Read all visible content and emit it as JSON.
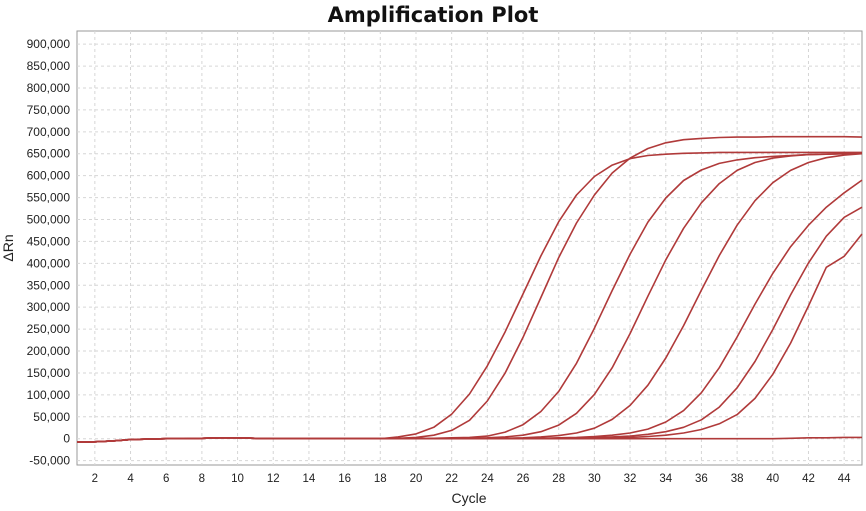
{
  "chart_data": {
    "type": "line",
    "title": "Amplification Plot",
    "xlabel": "Cycle",
    "ylabel": "ΔRn",
    "xlim": [
      1,
      45
    ],
    "ylim": [
      -60000,
      930000
    ],
    "x_ticks": [
      2,
      4,
      6,
      8,
      10,
      12,
      14,
      16,
      18,
      20,
      22,
      24,
      26,
      28,
      30,
      32,
      34,
      36,
      38,
      40,
      42,
      44
    ],
    "y_ticks": [
      -50000,
      0,
      50000,
      100000,
      150000,
      200000,
      250000,
      300000,
      350000,
      400000,
      450000,
      500000,
      550000,
      600000,
      650000,
      700000,
      750000,
      800000,
      850000,
      900000
    ],
    "y_tick_labels": [
      "-50,000",
      "0",
      "50,000",
      "100,000",
      "150,000",
      "200,000",
      "250,000",
      "300,000",
      "350,000",
      "400,000",
      "450,000",
      "500,000",
      "550,000",
      "600,000",
      "650,000",
      "700,000",
      "750,000",
      "800,000",
      "850,000",
      "900,000"
    ],
    "grid": true,
    "line_color": "#b03a3a",
    "x": [
      1,
      2,
      3,
      4,
      5,
      6,
      7,
      8,
      9,
      10,
      11,
      12,
      13,
      14,
      15,
      16,
      17,
      18,
      19,
      20,
      21,
      22,
      23,
      24,
      25,
      26,
      27,
      28,
      29,
      30,
      31,
      32,
      33,
      34,
      35,
      36,
      37,
      38,
      39,
      40,
      41,
      42,
      43,
      44,
      45
    ],
    "series": [
      {
        "values": [
          -8000,
          -7000,
          -5000,
          -2000,
          -1000,
          0,
          0,
          1000,
          2000,
          2000,
          1000,
          0,
          0,
          0,
          0,
          0,
          0,
          0,
          4000,
          11000,
          26000,
          56000,
          102000,
          166000,
          244000,
          330000,
          417000,
          495000,
          556000,
          598000,
          624000,
          639000,
          646000,
          649000,
          651000,
          652000,
          653000,
          653000,
          653000,
          653000,
          653000,
          653000,
          653000,
          653000,
          653000
        ]
      },
      {
        "values": [
          -8000,
          -7000,
          -5000,
          -2000,
          -1000,
          0,
          0,
          1000,
          2000,
          2000,
          1000,
          0,
          0,
          0,
          0,
          0,
          0,
          0,
          1000,
          3000,
          8000,
          19000,
          42000,
          86000,
          150000,
          231000,
          322000,
          413000,
          492000,
          556000,
          606000,
          640000,
          662000,
          675000,
          682000,
          685000,
          687000,
          688000,
          688000,
          689000,
          689000,
          689000,
          689000,
          689000,
          688000
        ]
      },
      {
        "values": [
          -8000,
          -7000,
          -5000,
          -2000,
          -1000,
          0,
          0,
          1000,
          2000,
          2000,
          1000,
          0,
          0,
          0,
          0,
          0,
          0,
          0,
          0,
          0,
          1000,
          2000,
          3000,
          6000,
          15000,
          32000,
          62000,
          108000,
          172000,
          252000,
          338000,
          421000,
          494000,
          549000,
          589000,
          613000,
          628000,
          636000,
          641000,
          644000,
          646000,
          648000,
          649000,
          650000,
          651000
        ]
      },
      {
        "values": [
          -8000,
          -7000,
          -5000,
          -2000,
          -1000,
          0,
          0,
          1000,
          2000,
          2000,
          1000,
          0,
          0,
          0,
          0,
          0,
          0,
          0,
          0,
          0,
          0,
          0,
          1000,
          2000,
          4000,
          8000,
          16000,
          31000,
          58000,
          101000,
          162000,
          240000,
          325000,
          408000,
          480000,
          538000,
          582000,
          612000,
          630000,
          640000,
          645000,
          648000,
          649000,
          650000,
          651000
        ]
      },
      {
        "values": [
          -8000,
          -7000,
          -5000,
          -2000,
          -1000,
          0,
          0,
          1000,
          2000,
          2000,
          1000,
          0,
          0,
          0,
          0,
          0,
          0,
          0,
          0,
          0,
          0,
          0,
          0,
          0,
          1000,
          2000,
          4000,
          7000,
          13000,
          24000,
          44000,
          76000,
          122000,
          184000,
          258000,
          339000,
          418000,
          487000,
          543000,
          584000,
          612000,
          630000,
          641000,
          647000,
          650000
        ]
      },
      {
        "values": [
          -8000,
          -7000,
          -5000,
          -2000,
          -1000,
          0,
          0,
          1000,
          2000,
          2000,
          1000,
          0,
          0,
          0,
          0,
          0,
          0,
          0,
          0,
          0,
          0,
          0,
          0,
          0,
          0,
          0,
          1000,
          2000,
          3000,
          5000,
          8000,
          13000,
          22000,
          38000,
          64000,
          105000,
          162000,
          232000,
          307000,
          377000,
          438000,
          487000,
          528000,
          561000,
          590000
        ]
      },
      {
        "values": [
          -8000,
          -7000,
          -5000,
          -2000,
          -1000,
          0,
          0,
          1000,
          2000,
          2000,
          1000,
          0,
          0,
          0,
          0,
          0,
          0,
          0,
          0,
          0,
          0,
          0,
          0,
          0,
          0,
          0,
          0,
          1000,
          2000,
          3000,
          4000,
          6000,
          10000,
          16000,
          26000,
          43000,
          72000,
          116000,
          176000,
          249000,
          328000,
          401000,
          462000,
          505000,
          528000
        ]
      },
      {
        "values": [
          -8000,
          -7000,
          -5000,
          -2000,
          -1000,
          0,
          0,
          1000,
          2000,
          2000,
          1000,
          0,
          0,
          0,
          0,
          0,
          0,
          0,
          0,
          0,
          0,
          0,
          0,
          0,
          0,
          0,
          0,
          0,
          0,
          1000,
          2000,
          3000,
          5000,
          8000,
          13000,
          21000,
          34000,
          55000,
          92000,
          147000,
          218000,
          303000,
          391000,
          416000,
          467000
        ]
      },
      {
        "values": [
          -8000,
          -7000,
          -5000,
          -2000,
          -1000,
          0,
          0,
          1000,
          2000,
          2000,
          1000,
          0,
          0,
          0,
          0,
          0,
          0,
          0,
          0,
          0,
          0,
          0,
          0,
          0,
          0,
          0,
          0,
          0,
          0,
          0,
          0,
          0,
          0,
          0,
          0,
          0,
          0,
          0,
          0,
          0,
          1000,
          2000,
          2000,
          3000,
          3000
        ]
      }
    ]
  }
}
